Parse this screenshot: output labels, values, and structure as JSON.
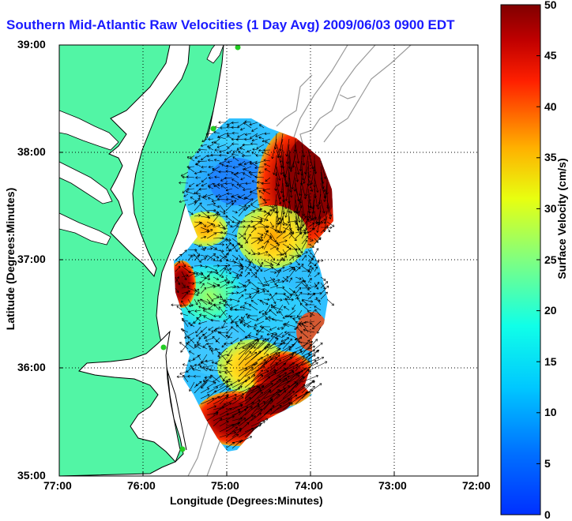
{
  "title": "Southern Mid-Atlantic Raw Velocities (1 Day Avg) 2009/06/03 0900 EDT",
  "axes": {
    "xlabel": "Longitude (Degrees:Minutes)",
    "ylabel": "Latitude (Degrees:Minutes)",
    "x_ticks": [
      "77:00",
      "76:00",
      "75:00",
      "74:00",
      "73:00",
      "72:00"
    ],
    "y_ticks": [
      "39:00",
      "38:00",
      "37:00",
      "36:00",
      "35:00"
    ],
    "xlim": [
      -77,
      -72
    ],
    "ylim": [
      35,
      39
    ],
    "grid": "dotted"
  },
  "colorbar": {
    "label": "Surface Velocity (cm/s)",
    "ticks": [
      "0",
      "5",
      "10",
      "15",
      "20",
      "25",
      "30",
      "35",
      "40",
      "45",
      "50"
    ],
    "range": [
      0,
      50
    ],
    "colormap": "jet"
  },
  "colors": {
    "land": "#52f5a5",
    "coast_outline": "#000000",
    "bathymetry": "#9a9a9a",
    "title": "#1a1aff",
    "station_marker": "#22cc22"
  },
  "chart_data": {
    "type": "heatmap",
    "title": "Southern Mid-Atlantic Raw Velocities (1 Day Avg) 2009/06/03 0900 EDT",
    "xlabel": "Longitude (Degrees:Minutes)",
    "ylabel": "Latitude (Degrees:Minutes)",
    "colorbar_label": "Surface Velocity (cm/s)",
    "value_range": [
      0,
      50
    ],
    "regions": [
      {
        "lon": -74.75,
        "lat": 37.75,
        "speed": 8
      },
      {
        "lon": -74.2,
        "lat": 37.75,
        "speed": 48
      },
      {
        "lon": -75.3,
        "lat": 37.3,
        "speed": 33
      },
      {
        "lon": -74.3,
        "lat": 37.2,
        "speed": 35
      },
      {
        "lon": -75.0,
        "lat": 36.75,
        "speed": 20
      },
      {
        "lon": -74.5,
        "lat": 36.6,
        "speed": 13
      },
      {
        "lon": -74.9,
        "lat": 36.2,
        "speed": 9
      },
      {
        "lon": -74.6,
        "lat": 35.9,
        "speed": 25
      },
      {
        "lon": -74.3,
        "lat": 35.75,
        "speed": 48
      },
      {
        "lon": -75.0,
        "lat": 35.4,
        "speed": 47
      }
    ],
    "stations": [
      {
        "lon": -75.1,
        "lat": 39.0
      },
      {
        "lon": -75.15,
        "lat": 38.23
      },
      {
        "lon": -75.7,
        "lat": 36.18
      },
      {
        "lon": -75.55,
        "lat": 35.25
      }
    ]
  }
}
